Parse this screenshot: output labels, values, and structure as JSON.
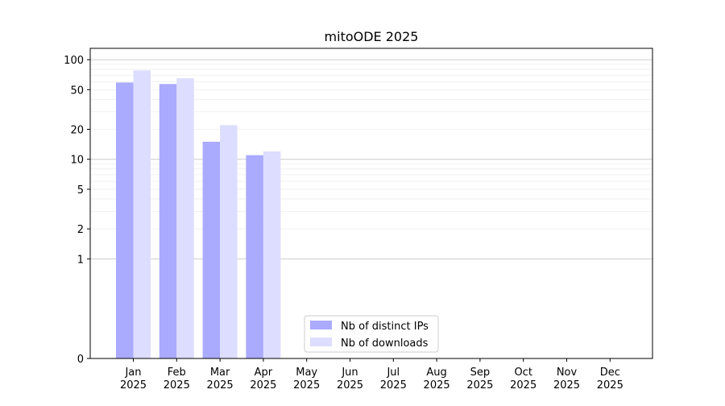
{
  "chart_data": {
    "type": "bar",
    "title": "mitoODE 2025",
    "categories": [
      "Jan\n2025",
      "Feb\n2025",
      "Mar\n2025",
      "Apr\n2025",
      "May\n2025",
      "Jun\n2025",
      "Jul\n2025",
      "Aug\n2025",
      "Sep\n2025",
      "Oct\n2025",
      "Nov\n2025",
      "Dec\n2025"
    ],
    "series": [
      {
        "name": "Nb of distinct IPs",
        "color": "#aaaaff",
        "values": [
          59,
          57,
          15,
          11,
          0,
          0,
          0,
          0,
          0,
          0,
          0,
          0
        ]
      },
      {
        "name": "Nb of downloads",
        "color": "#ddddff",
        "values": [
          78,
          65,
          22,
          12,
          0,
          0,
          0,
          0,
          0,
          0,
          0,
          0
        ]
      }
    ],
    "y_scale": "symlog",
    "y_ticks": [
      0,
      1,
      2,
      5,
      10,
      20,
      50,
      100
    ],
    "ylim": [
      0,
      130
    ],
    "grid": true,
    "legend_position": "bottom-left-center"
  }
}
